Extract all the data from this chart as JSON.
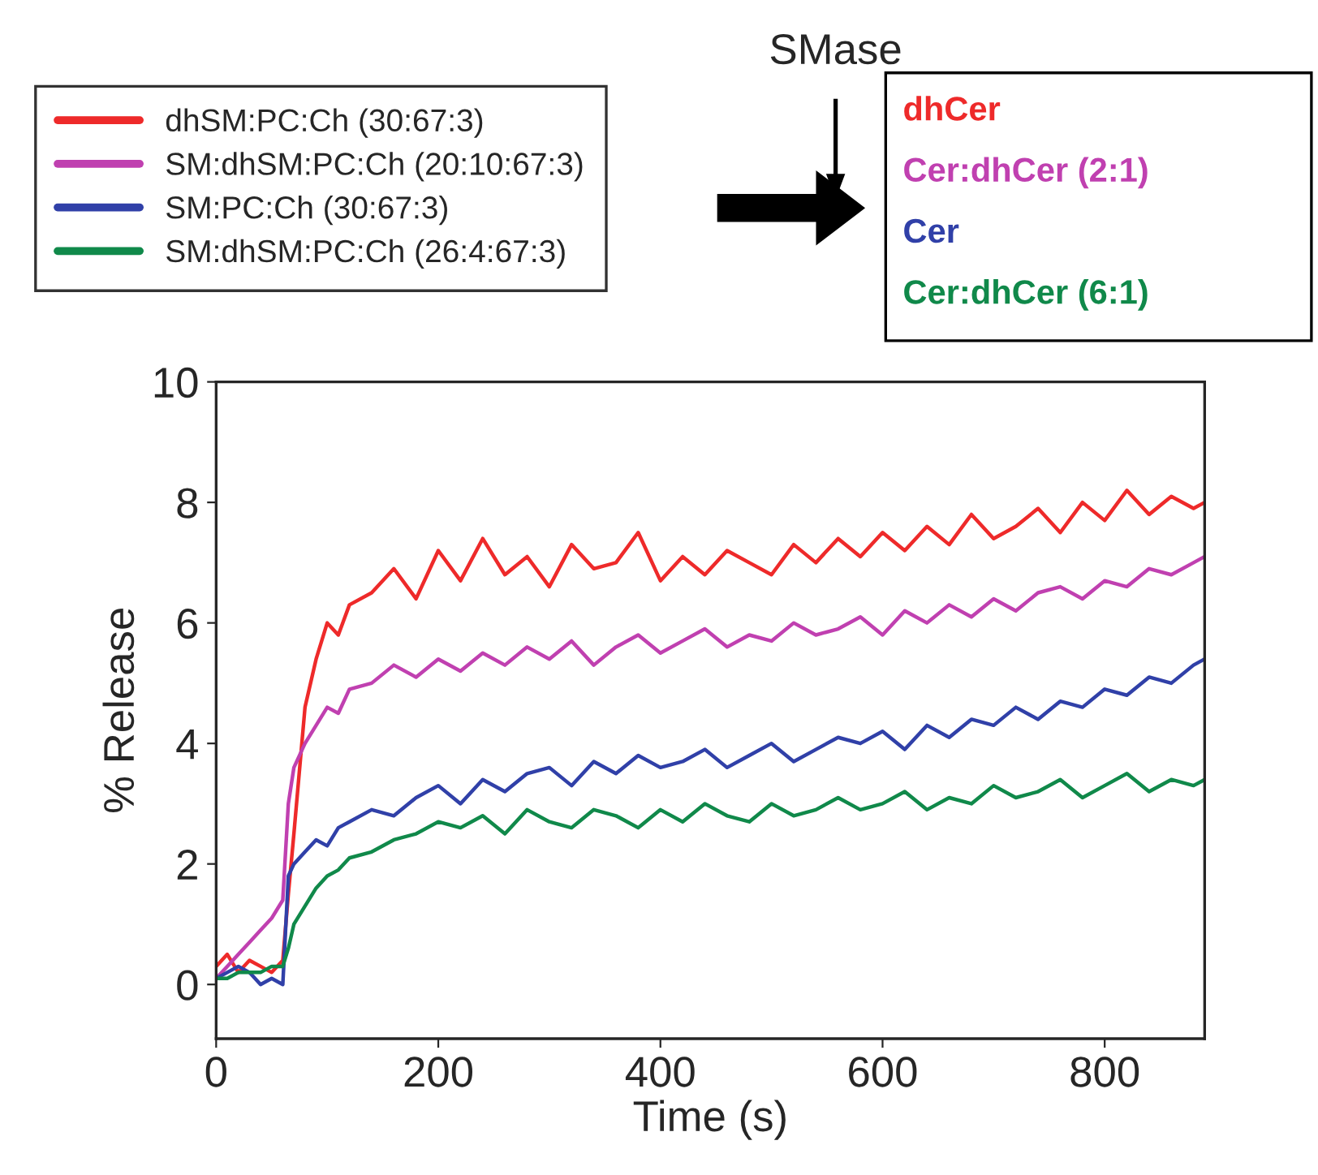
{
  "chart_data": {
    "type": "line",
    "xlabel": "Time (s)",
    "ylabel": "% Release",
    "x": [
      0,
      10,
      20,
      30,
      40,
      50,
      60,
      65,
      70,
      80,
      90,
      100,
      110,
      120,
      140,
      160,
      180,
      200,
      220,
      240,
      260,
      280,
      300,
      320,
      340,
      360,
      380,
      400,
      420,
      440,
      460,
      480,
      500,
      520,
      540,
      560,
      580,
      600,
      620,
      640,
      660,
      680,
      700,
      720,
      740,
      760,
      780,
      800,
      820,
      840,
      860,
      880,
      890
    ],
    "series": [
      {
        "name": "dhSM:PC:Ch (30:67:3)",
        "color": "#ee2a2a",
        "values": [
          0.3,
          0.5,
          0.2,
          0.4,
          0.3,
          0.2,
          0.4,
          1.5,
          2.5,
          4.6,
          5.4,
          6.0,
          5.8,
          6.3,
          6.5,
          6.9,
          6.4,
          7.2,
          6.7,
          7.4,
          6.8,
          7.1,
          6.6,
          7.3,
          6.9,
          7.0,
          7.5,
          6.7,
          7.1,
          6.8,
          7.2,
          7.0,
          6.8,
          7.3,
          7.0,
          7.4,
          7.1,
          7.5,
          7.2,
          7.6,
          7.3,
          7.8,
          7.4,
          7.6,
          7.9,
          7.5,
          8.0,
          7.7,
          8.2,
          7.8,
          8.1,
          7.9,
          8.0
        ]
      },
      {
        "name": "SM:dhSM:PC:Ch (20:10:67:3)",
        "color": "#c040b0",
        "values": [
          0.1,
          0.3,
          0.5,
          0.7,
          0.9,
          1.1,
          1.4,
          3.0,
          3.6,
          4.0,
          4.3,
          4.6,
          4.5,
          4.9,
          5.0,
          5.3,
          5.1,
          5.4,
          5.2,
          5.5,
          5.3,
          5.6,
          5.4,
          5.7,
          5.3,
          5.6,
          5.8,
          5.5,
          5.7,
          5.9,
          5.6,
          5.8,
          5.7,
          6.0,
          5.8,
          5.9,
          6.1,
          5.8,
          6.2,
          6.0,
          6.3,
          6.1,
          6.4,
          6.2,
          6.5,
          6.6,
          6.4,
          6.7,
          6.6,
          6.9,
          6.8,
          7.0,
          7.1
        ]
      },
      {
        "name": "SM:PC:Ch (30:67:3)",
        "color": "#3040a8",
        "values": [
          0.1,
          0.2,
          0.3,
          0.2,
          0.0,
          0.1,
          0.0,
          1.8,
          2.0,
          2.2,
          2.4,
          2.3,
          2.6,
          2.7,
          2.9,
          2.8,
          3.1,
          3.3,
          3.0,
          3.4,
          3.2,
          3.5,
          3.6,
          3.3,
          3.7,
          3.5,
          3.8,
          3.6,
          3.7,
          3.9,
          3.6,
          3.8,
          4.0,
          3.7,
          3.9,
          4.1,
          4.0,
          4.2,
          3.9,
          4.3,
          4.1,
          4.4,
          4.3,
          4.6,
          4.4,
          4.7,
          4.6,
          4.9,
          4.8,
          5.1,
          5.0,
          5.3,
          5.4
        ]
      },
      {
        "name": "SM:dhSM:PC:Ch (26:4:67:3)",
        "color": "#10894a",
        "values": [
          0.1,
          0.1,
          0.2,
          0.2,
          0.2,
          0.3,
          0.3,
          0.6,
          1.0,
          1.3,
          1.6,
          1.8,
          1.9,
          2.1,
          2.2,
          2.4,
          2.5,
          2.7,
          2.6,
          2.8,
          2.5,
          2.9,
          2.7,
          2.6,
          2.9,
          2.8,
          2.6,
          2.9,
          2.7,
          3.0,
          2.8,
          2.7,
          3.0,
          2.8,
          2.9,
          3.1,
          2.9,
          3.0,
          3.2,
          2.9,
          3.1,
          3.0,
          3.3,
          3.1,
          3.2,
          3.4,
          3.1,
          3.3,
          3.5,
          3.2,
          3.4,
          3.3,
          3.4
        ]
      }
    ],
    "xlim": [
      0,
      890
    ],
    "ylim": [
      -0.9,
      10
    ],
    "xticks": [
      0,
      200,
      400,
      600,
      800
    ],
    "yticks": [
      0,
      2,
      4,
      6,
      8,
      10
    ],
    "grid": false,
    "legend": "top left",
    "marker": "none",
    "line_style": "solid",
    "annotations": [
      "SMase",
      "dhCer",
      "Cer:dhCer (2:1)",
      "Cer",
      "Cer:dhCer (6:1)"
    ]
  }
}
